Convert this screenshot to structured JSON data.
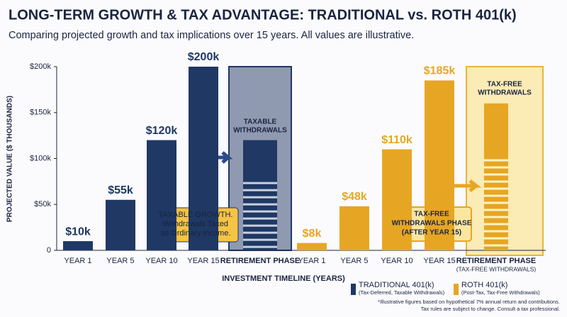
{
  "chart_data": {
    "type": "bar",
    "title": "LONG-TERM GROWTH & TAX ADVANTAGE: TRADITIONAL vs. ROTH 401(k)",
    "subtitle": "Comparing projected growth and tax implications over 15 years. All values are illustrative.",
    "y_label": "PROJECTED VALUE ($ THOUSANDS)",
    "x_label": "INVESTMENT TIMELINE (YEARS)",
    "categories": [
      "YEAR 1",
      "YEAR 5",
      "YEAR 10",
      "YEAR 15",
      "RETIREMENT PHASE",
      "YEAR 1",
      "YEAR 5",
      "YEAR 10",
      "YEAR 15",
      "RETIREMENT PHASE"
    ],
    "retirement_note": "(TAX-FREE WITHDRAWALS)",
    "ylim": [
      0,
      200
    ],
    "yticks": [
      0,
      {
        "value": 50,
        "label": "$50k"
      },
      {
        "value": 100,
        "label": "$100k"
      },
      {
        "value": 150,
        "label": "$150k"
      },
      {
        "value": 200,
        "label": "$200k"
      }
    ],
    "series": [
      {
        "name": "TRADITIONAL 401(k)",
        "description": "(Tax-Deferred, Taxable Withdrawals)",
        "color": "#1f3864",
        "values": [
          10,
          55,
          120,
          200,
          120,
          null,
          null,
          null,
          null,
          null
        ],
        "value_labels": [
          "$10k",
          "$55k",
          "$120k",
          "$200k",
          null,
          null,
          null,
          null,
          null,
          null
        ]
      },
      {
        "name": "ROTH 401(k)",
        "description": "(Post-Tax, Tax-Free Withdrawals)",
        "color": "#e6a623",
        "values": [
          null,
          null,
          null,
          null,
          null,
          8,
          48,
          110,
          185,
          160
        ],
        "value_labels": [
          null,
          null,
          null,
          null,
          null,
          "$8k",
          "$48k",
          "$110k",
          "$185k",
          null
        ]
      }
    ],
    "annotations": {
      "taxable_withdrawals": [
        "TAXABLE",
        "WITHDRAWALS"
      ],
      "taxable_growth": [
        "TAXABLE GROWTH.",
        "Withdrawals Taxed",
        "as Ordinary Income."
      ],
      "tax_free_withdrawals": [
        "TAX-FREE",
        "WITHDRAWALS"
      ],
      "tax_free_phase": [
        "TAX-FREE",
        "WITHDRAWALS PHASE",
        "(AFTER YEAR 15)"
      ]
    },
    "footnote": [
      "*Illustrative figures based on hypothetical 7% annual return and contributions.",
      "Tax rules are subject to change. Consult a tax professional."
    ]
  }
}
